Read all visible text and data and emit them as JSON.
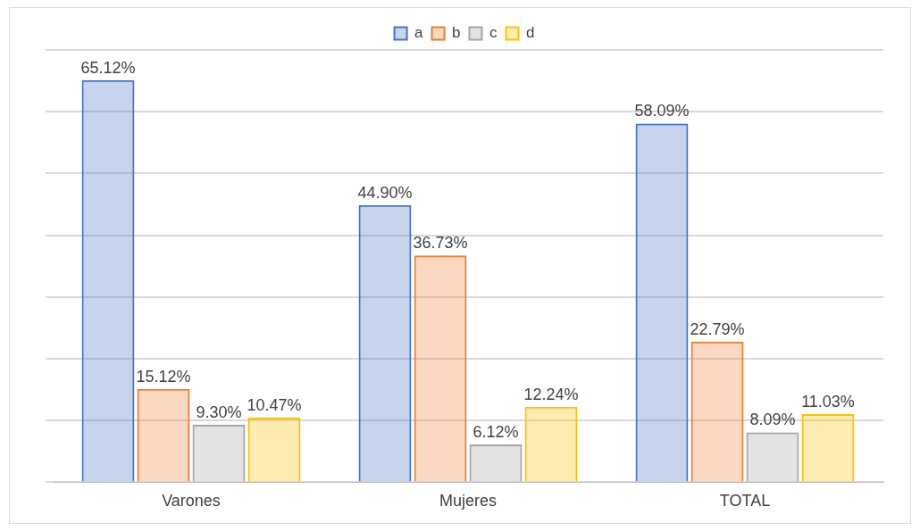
{
  "chart_data": {
    "type": "bar",
    "categories": [
      "Varones",
      "Mujeres",
      "TOTAL"
    ],
    "series": [
      {
        "name": "a",
        "color": "#4472c4",
        "values": [
          65.12,
          44.9,
          58.09
        ],
        "value_labels": [
          "65.12%",
          "44.90%",
          "58.09%"
        ]
      },
      {
        "name": "b",
        "color": "#ed7d31",
        "values": [
          15.12,
          36.73,
          22.79
        ],
        "value_labels": [
          "15.12%",
          "36.73%",
          "22.79%"
        ]
      },
      {
        "name": "c",
        "color": "#a5a5a5",
        "values": [
          9.3,
          6.12,
          8.09
        ],
        "value_labels": [
          "9.30%",
          "6.12%",
          "8.09%"
        ]
      },
      {
        "name": "d",
        "color": "#ffc000",
        "values": [
          10.47,
          12.24,
          11.03
        ],
        "value_labels": [
          "10.47%",
          "12.24%",
          "11.03%"
        ]
      }
    ],
    "ylim": [
      0,
      70
    ],
    "yticks": [
      {
        "value": 0,
        "label": null
      },
      {
        "value": 10,
        "label": null
      },
      {
        "value": 20,
        "label": null
      },
      {
        "value": 30,
        "label": null
      },
      {
        "value": 40,
        "label": null
      },
      {
        "value": 50,
        "label": null
      },
      {
        "value": 60,
        "label": null
      },
      {
        "value": 70,
        "label": null
      }
    ],
    "grid": "y",
    "legend": "top",
    "tick_labels": "x"
  }
}
